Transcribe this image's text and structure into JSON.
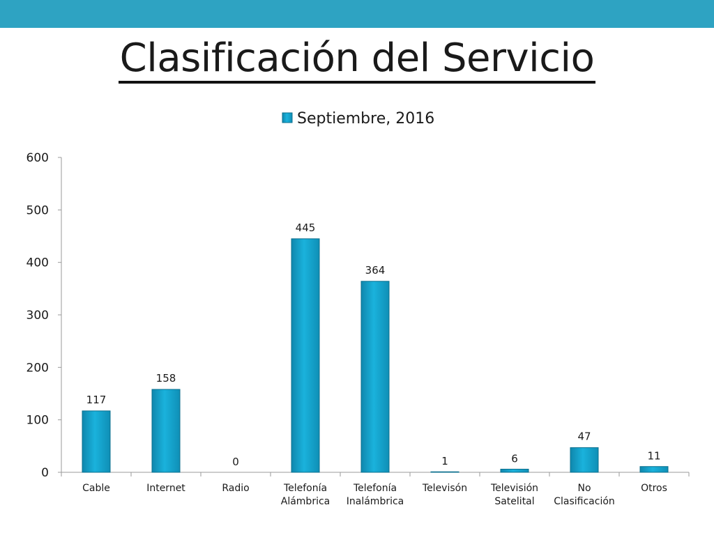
{
  "slide": {
    "title": "Clasificación del Servicio",
    "top_bar_color": "#2ea3c2"
  },
  "chart_data": {
    "type": "bar",
    "title": "",
    "xlabel": "",
    "ylabel": "",
    "ylim": [
      0,
      600
    ],
    "yticks": [
      0,
      100,
      200,
      300,
      400,
      500,
      600
    ],
    "grid": false,
    "legend": {
      "position": "top",
      "entries": [
        "Septiembre, 2016"
      ]
    },
    "categories": [
      [
        "Cable"
      ],
      [
        "Internet"
      ],
      [
        "Radio"
      ],
      [
        "Telefonía",
        "Alámbrica"
      ],
      [
        "Telefonía",
        "Inalámbrica"
      ],
      [
        "Televisón"
      ],
      [
        "Televisión",
        "Satelital"
      ],
      [
        "No",
        "Clasificación"
      ],
      [
        "Otros"
      ]
    ],
    "series": [
      {
        "name": "Septiembre, 2016",
        "color": "#1aa6cf",
        "values": [
          117,
          158,
          0,
          445,
          364,
          1,
          6,
          47,
          11
        ],
        "data_labels": [
          "117",
          "158",
          "0",
          "445",
          "364",
          "1",
          "6",
          "47",
          "11"
        ]
      }
    ]
  }
}
